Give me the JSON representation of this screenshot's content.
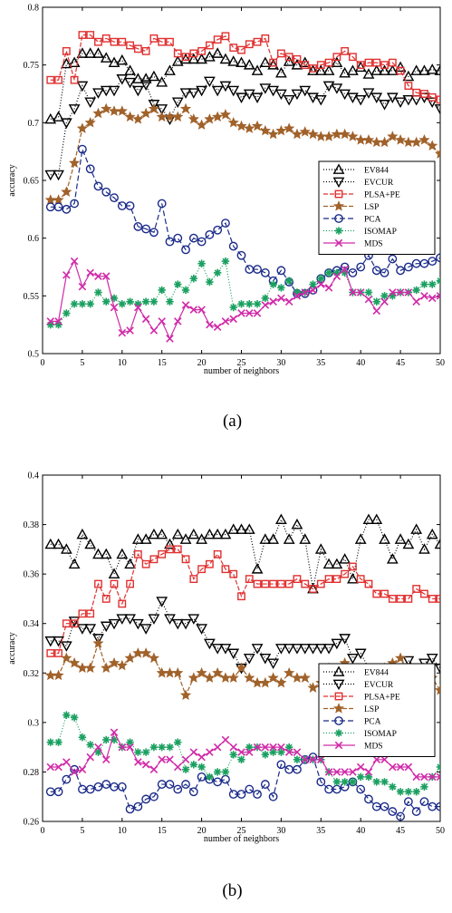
{
  "chart_data": [
    {
      "type": "line",
      "caption": "(a)",
      "xlabel": "number of neighbors",
      "ylabel": "accuracy",
      "xlim": [
        0,
        50
      ],
      "ylim": [
        0.5,
        0.8
      ],
      "xticks": [
        0,
        5,
        10,
        15,
        20,
        25,
        30,
        35,
        40,
        45,
        50
      ],
      "yticks": [
        0.5,
        0.55,
        0.6,
        0.65,
        0.7,
        0.75,
        0.8
      ],
      "grid": false,
      "legend_position": "center-right",
      "x": [
        1,
        2,
        3,
        4,
        5,
        6,
        7,
        8,
        9,
        10,
        11,
        12,
        13,
        14,
        15,
        16,
        17,
        18,
        19,
        20,
        21,
        22,
        23,
        24,
        25,
        26,
        27,
        28,
        29,
        30,
        31,
        32,
        33,
        34,
        35,
        36,
        37,
        38,
        39,
        40,
        41,
        42,
        43,
        44,
        45,
        46,
        47,
        48,
        49,
        50
      ],
      "series": [
        {
          "name": "EV844",
          "color": "#000000",
          "marker": "triangle-up",
          "dash": "1,2",
          "values": [
            0.703,
            0.705,
            0.751,
            0.752,
            0.76,
            0.76,
            0.76,
            0.756,
            0.752,
            0.754,
            0.745,
            0.738,
            0.738,
            0.74,
            0.735,
            0.745,
            0.753,
            0.755,
            0.755,
            0.755,
            0.757,
            0.76,
            0.755,
            0.753,
            0.752,
            0.75,
            0.745,
            0.752,
            0.75,
            0.743,
            0.753,
            0.75,
            0.752,
            0.745,
            0.745,
            0.745,
            0.752,
            0.743,
            0.745,
            0.748,
            0.742,
            0.745,
            0.745,
            0.745,
            0.748,
            0.74,
            0.745,
            0.745,
            0.746,
            0.745
          ]
        },
        {
          "name": "EVCUR",
          "color": "#000000",
          "marker": "triangle-down",
          "dash": "1,2",
          "values": [
            0.655,
            0.655,
            0.7,
            0.712,
            0.732,
            0.718,
            0.726,
            0.728,
            0.728,
            0.738,
            0.735,
            0.728,
            0.733,
            0.716,
            0.712,
            0.703,
            0.718,
            0.726,
            0.726,
            0.728,
            0.736,
            0.728,
            0.732,
            0.728,
            0.722,
            0.725,
            0.722,
            0.73,
            0.728,
            0.725,
            0.72,
            0.725,
            0.728,
            0.722,
            0.72,
            0.732,
            0.73,
            0.725,
            0.722,
            0.72,
            0.726,
            0.722,
            0.716,
            0.722,
            0.718,
            0.72,
            0.72,
            0.722,
            0.718,
            0.712
          ]
        },
        {
          "name": "PLSA+PE",
          "color": "#e03030",
          "marker": "square",
          "dash": "5,2",
          "values": [
            0.737,
            0.737,
            0.762,
            0.737,
            0.776,
            0.776,
            0.77,
            0.773,
            0.77,
            0.77,
            0.767,
            0.764,
            0.762,
            0.773,
            0.77,
            0.77,
            0.76,
            0.757,
            0.76,
            0.762,
            0.767,
            0.772,
            0.775,
            0.765,
            0.763,
            0.768,
            0.77,
            0.773,
            0.752,
            0.76,
            0.757,
            0.755,
            0.75,
            0.747,
            0.75,
            0.752,
            0.757,
            0.762,
            0.757,
            0.75,
            0.752,
            0.752,
            0.75,
            0.752,
            0.745,
            0.732,
            0.726,
            0.725,
            0.722,
            0.72
          ]
        },
        {
          "name": "LSP",
          "color": "#a0622a",
          "marker": "star",
          "dash": "5,2",
          "values": [
            0.633,
            0.633,
            0.64,
            0.665,
            0.695,
            0.7,
            0.708,
            0.712,
            0.71,
            0.71,
            0.705,
            0.703,
            0.708,
            0.712,
            0.705,
            0.705,
            0.705,
            0.712,
            0.703,
            0.698,
            0.703,
            0.705,
            0.707,
            0.7,
            0.697,
            0.695,
            0.697,
            0.693,
            0.69,
            0.693,
            0.695,
            0.69,
            0.692,
            0.69,
            0.688,
            0.688,
            0.69,
            0.69,
            0.688,
            0.685,
            0.685,
            0.683,
            0.683,
            0.688,
            0.685,
            0.683,
            0.683,
            0.685,
            0.68,
            0.673
          ]
        },
        {
          "name": "PCA",
          "color": "#1a2a88",
          "marker": "circle",
          "dash": "6,3",
          "values": [
            0.627,
            0.627,
            0.625,
            0.63,
            0.677,
            0.66,
            0.645,
            0.64,
            0.635,
            0.628,
            0.628,
            0.61,
            0.608,
            0.605,
            0.63,
            0.597,
            0.6,
            0.59,
            0.6,
            0.597,
            0.603,
            0.607,
            0.613,
            0.593,
            0.585,
            0.573,
            0.573,
            0.57,
            0.563,
            0.572,
            0.562,
            0.552,
            0.552,
            0.555,
            0.565,
            0.57,
            0.572,
            0.575,
            0.57,
            0.575,
            0.585,
            0.572,
            0.57,
            0.582,
            0.572,
            0.575,
            0.578,
            0.578,
            0.58,
            0.583
          ]
        },
        {
          "name": "ISOMAP",
          "color": "#1aa060",
          "marker": "asterisk",
          "dash": "1,2",
          "values": [
            0.525,
            0.525,
            0.535,
            0.543,
            0.543,
            0.543,
            0.553,
            0.545,
            0.548,
            0.543,
            0.545,
            0.543,
            0.545,
            0.545,
            0.555,
            0.545,
            0.56,
            0.555,
            0.565,
            0.578,
            0.562,
            0.57,
            0.58,
            0.54,
            0.543,
            0.543,
            0.543,
            0.548,
            0.56,
            0.557,
            0.563,
            0.553,
            0.553,
            0.56,
            0.565,
            0.57,
            0.57,
            0.57,
            0.553,
            0.553,
            0.553,
            0.545,
            0.55,
            0.55,
            0.553,
            0.553,
            0.555,
            0.56,
            0.56,
            0.563
          ]
        },
        {
          "name": "MDS",
          "color": "#d02aa8",
          "marker": "x",
          "dash": "",
          "values": [
            0.528,
            0.528,
            0.568,
            0.58,
            0.558,
            0.57,
            0.567,
            0.567,
            0.54,
            0.518,
            0.52,
            0.54,
            0.53,
            0.52,
            0.528,
            0.513,
            0.528,
            0.542,
            0.538,
            0.538,
            0.525,
            0.523,
            0.528,
            0.53,
            0.535,
            0.535,
            0.535,
            0.542,
            0.545,
            0.548,
            0.545,
            0.55,
            0.553,
            0.555,
            0.56,
            0.557,
            0.567,
            0.573,
            0.553,
            0.553,
            0.547,
            0.537,
            0.545,
            0.553,
            0.553,
            0.553,
            0.545,
            0.55,
            0.548,
            0.55
          ]
        }
      ]
    },
    {
      "type": "line",
      "caption": "(b)",
      "xlabel": "number of neighbors",
      "ylabel": "accuracy",
      "xlim": [
        0,
        50
      ],
      "ylim": [
        0.26,
        0.4
      ],
      "xticks": [
        0,
        5,
        10,
        15,
        20,
        25,
        30,
        35,
        40,
        45,
        50
      ],
      "yticks": [
        0.26,
        0.28,
        0.3,
        0.32,
        0.34,
        0.36,
        0.38,
        0.4
      ],
      "grid": false,
      "legend_position": "center-right",
      "x": [
        1,
        2,
        3,
        4,
        5,
        6,
        7,
        8,
        9,
        10,
        11,
        12,
        13,
        14,
        15,
        16,
        17,
        18,
        19,
        20,
        21,
        22,
        23,
        24,
        25,
        26,
        27,
        28,
        29,
        30,
        31,
        32,
        33,
        34,
        35,
        36,
        37,
        38,
        39,
        40,
        41,
        42,
        43,
        44,
        45,
        46,
        47,
        48,
        49,
        50
      ],
      "series": [
        {
          "name": "EV844",
          "color": "#000000",
          "marker": "triangle-up",
          "dash": "1,2",
          "values": [
            0.372,
            0.372,
            0.37,
            0.364,
            0.376,
            0.372,
            0.368,
            0.368,
            0.36,
            0.368,
            0.364,
            0.374,
            0.374,
            0.376,
            0.376,
            0.372,
            0.376,
            0.374,
            0.376,
            0.374,
            0.376,
            0.376,
            0.376,
            0.378,
            0.378,
            0.378,
            0.362,
            0.374,
            0.374,
            0.382,
            0.374,
            0.38,
            0.374,
            0.354,
            0.37,
            0.364,
            0.364,
            0.366,
            0.358,
            0.374,
            0.382,
            0.382,
            0.374,
            0.366,
            0.374,
            0.372,
            0.378,
            0.37,
            0.376,
            0.372
          ]
        },
        {
          "name": "EVCUR",
          "color": "#000000",
          "marker": "triangle-down",
          "dash": "1,2",
          "values": [
            0.333,
            0.333,
            0.331,
            0.341,
            0.338,
            0.338,
            0.334,
            0.339,
            0.34,
            0.342,
            0.342,
            0.34,
            0.338,
            0.342,
            0.349,
            0.342,
            0.34,
            0.34,
            0.342,
            0.338,
            0.332,
            0.33,
            0.33,
            0.328,
            0.322,
            0.326,
            0.33,
            0.326,
            0.324,
            0.33,
            0.33,
            0.33,
            0.33,
            0.33,
            0.33,
            0.33,
            0.332,
            0.334,
            0.326,
            0.328,
            0.322,
            0.322,
            0.32,
            0.322,
            0.322,
            0.325,
            0.322,
            0.324,
            0.326,
            0.322
          ]
        },
        {
          "name": "PLSA+PE",
          "color": "#e03030",
          "marker": "square",
          "dash": "5,2",
          "values": [
            0.328,
            0.328,
            0.34,
            0.34,
            0.344,
            0.344,
            0.356,
            0.35,
            0.356,
            0.348,
            0.356,
            0.368,
            0.364,
            0.366,
            0.368,
            0.37,
            0.37,
            0.366,
            0.358,
            0.362,
            0.364,
            0.368,
            0.362,
            0.36,
            0.351,
            0.358,
            0.356,
            0.356,
            0.356,
            0.356,
            0.356,
            0.358,
            0.356,
            0.354,
            0.356,
            0.358,
            0.358,
            0.36,
            0.363,
            0.358,
            0.356,
            0.352,
            0.352,
            0.35,
            0.35,
            0.35,
            0.354,
            0.352,
            0.35,
            0.35
          ]
        },
        {
          "name": "LSP",
          "color": "#a0622a",
          "marker": "star",
          "dash": "5,2",
          "values": [
            0.319,
            0.319,
            0.326,
            0.324,
            0.322,
            0.322,
            0.332,
            0.322,
            0.324,
            0.323,
            0.326,
            0.328,
            0.328,
            0.326,
            0.32,
            0.32,
            0.32,
            0.311,
            0.318,
            0.32,
            0.318,
            0.32,
            0.318,
            0.318,
            0.322,
            0.318,
            0.316,
            0.316,
            0.318,
            0.316,
            0.32,
            0.318,
            0.318,
            0.314,
            0.316,
            0.322,
            0.318,
            0.324,
            0.316,
            0.318,
            0.32,
            0.318,
            0.322,
            0.324,
            0.326,
            0.32,
            0.318,
            0.316,
            0.318,
            0.313
          ]
        },
        {
          "name": "PCA",
          "color": "#1a2a88",
          "marker": "circle",
          "dash": "6,3",
          "values": [
            0.272,
            0.272,
            0.277,
            0.281,
            0.273,
            0.273,
            0.274,
            0.275,
            0.274,
            0.274,
            0.265,
            0.266,
            0.269,
            0.27,
            0.275,
            0.275,
            0.273,
            0.275,
            0.272,
            0.278,
            0.277,
            0.276,
            0.277,
            0.271,
            0.271,
            0.273,
            0.271,
            0.275,
            0.27,
            0.283,
            0.281,
            0.281,
            0.285,
            0.286,
            0.276,
            0.273,
            0.273,
            0.274,
            0.276,
            0.273,
            0.269,
            0.266,
            0.266,
            0.264,
            0.262,
            0.268,
            0.264,
            0.268,
            0.266,
            0.266
          ]
        },
        {
          "name": "ISOMAP",
          "color": "#1aa060",
          "marker": "asterisk",
          "dash": "1,2",
          "values": [
            0.292,
            0.292,
            0.303,
            0.302,
            0.294,
            0.291,
            0.288,
            0.293,
            0.293,
            0.29,
            0.292,
            0.288,
            0.288,
            0.29,
            0.29,
            0.29,
            0.292,
            0.281,
            0.283,
            0.282,
            0.278,
            0.28,
            0.28,
            0.287,
            0.285,
            0.29,
            0.29,
            0.287,
            0.288,
            0.288,
            0.29,
            0.285,
            0.285,
            0.285,
            0.285,
            0.28,
            0.276,
            0.276,
            0.276,
            0.278,
            0.278,
            0.276,
            0.276,
            0.274,
            0.272,
            0.272,
            0.272,
            0.274,
            0.278,
            0.282
          ]
        },
        {
          "name": "MDS",
          "color": "#d02aa8",
          "marker": "x",
          "dash": "",
          "values": [
            0.282,
            0.282,
            0.284,
            0.28,
            0.281,
            0.286,
            0.29,
            0.285,
            0.296,
            0.29,
            0.29,
            0.284,
            0.283,
            0.281,
            0.285,
            0.285,
            0.282,
            0.285,
            0.288,
            0.286,
            0.288,
            0.29,
            0.293,
            0.29,
            0.288,
            0.288,
            0.29,
            0.29,
            0.29,
            0.29,
            0.288,
            0.288,
            0.285,
            0.285,
            0.285,
            0.28,
            0.28,
            0.28,
            0.28,
            0.282,
            0.28,
            0.285,
            0.285,
            0.282,
            0.282,
            0.282,
            0.278,
            0.278,
            0.278,
            0.278
          ]
        }
      ]
    }
  ]
}
